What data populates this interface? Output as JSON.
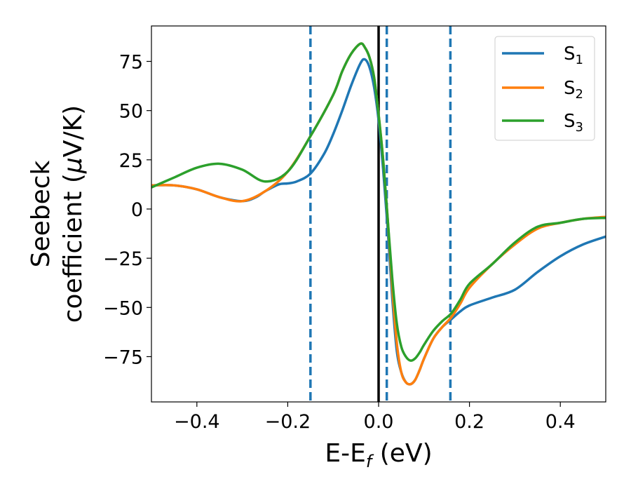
{
  "chart_data": {
    "type": "line",
    "xlabel": {
      "main": "E-E",
      "sub": "f",
      "unit": " (eV)"
    },
    "ylabel": {
      "line1": "Seebeck",
      "line2_prefix": "coefficient  (",
      "mu": "μ",
      "line2_suffix": "V/K)"
    },
    "xlim": [
      -0.5,
      0.5
    ],
    "ylim": [
      -98,
      93
    ],
    "xticks": [
      -0.4,
      -0.2,
      0.0,
      0.2,
      0.4
    ],
    "xtick_labels": [
      "−0.4",
      "−0.2",
      "0.0",
      "0.2",
      "0.4"
    ],
    "yticks": [
      75,
      50,
      25,
      0,
      -25,
      -50,
      -75
    ],
    "ytick_labels": [
      "75",
      "50",
      "25",
      "0",
      "−25",
      "−50",
      "−75"
    ],
    "grid": false,
    "legend_position": "top-right",
    "colors": {
      "S1": "#1f77b4",
      "S2": "#ff7f0e",
      "S3": "#2ca02c",
      "fermi_line": "#000000",
      "dashed": "#1f77b4"
    },
    "vertical_lines": {
      "solid": [
        0.0
      ],
      "dashed": [
        -0.15,
        0.018,
        0.158
      ]
    },
    "series": [
      {
        "name": "S1",
        "label_main": "S",
        "label_sub": "1",
        "color": "#1f77b4",
        "x": [
          -0.5,
          -0.45,
          -0.4,
          -0.35,
          -0.3,
          -0.27,
          -0.25,
          -0.22,
          -0.2,
          -0.18,
          -0.15,
          -0.12,
          -0.1,
          -0.08,
          -0.06,
          -0.04,
          -0.03,
          -0.02,
          -0.01,
          0,
          0.01,
          0.02,
          0.03,
          0.04,
          0.05,
          0.06,
          0.07,
          0.08,
          0.09,
          0.1,
          0.12,
          0.14,
          0.16,
          0.18,
          0.2,
          0.25,
          0.3,
          0.35,
          0.4,
          0.45,
          0.5
        ],
        "y": [
          12,
          12,
          10,
          6,
          4,
          6,
          9,
          12.5,
          13,
          14,
          18,
          28,
          38,
          50,
          63,
          74,
          76,
          72,
          62,
          45,
          20,
          -10,
          -45,
          -72,
          -83,
          -88,
          -89,
          -87,
          -82,
          -76,
          -66,
          -60,
          -56,
          -52,
          -49,
          -45,
          -41,
          -32,
          -24,
          -18,
          -14
        ]
      },
      {
        "name": "S2",
        "label_main": "S",
        "label_sub": "2",
        "color": "#ff7f0e",
        "x": [
          -0.5,
          -0.45,
          -0.4,
          -0.35,
          -0.3,
          -0.25,
          -0.2,
          -0.15,
          -0.1,
          -0.08,
          -0.06,
          -0.04,
          -0.03,
          -0.02,
          -0.01,
          0,
          0.01,
          0.02,
          0.03,
          0.04,
          0.05,
          0.06,
          0.07,
          0.08,
          0.09,
          0.1,
          0.12,
          0.14,
          0.16,
          0.18,
          0.2,
          0.25,
          0.3,
          0.35,
          0.4,
          0.45,
          0.5
        ],
        "y": [
          12,
          12,
          10,
          6,
          4,
          9,
          19,
          37,
          58,
          70,
          79,
          84,
          82,
          77,
          67,
          48,
          25,
          -5,
          -40,
          -68,
          -83,
          -88,
          -89,
          -87,
          -82,
          -76,
          -66,
          -60,
          -55,
          -48,
          -40,
          -28,
          -18,
          -10,
          -7,
          -5,
          -4
        ]
      },
      {
        "name": "S3",
        "label_main": "S",
        "label_sub": "3",
        "color": "#2ca02c",
        "x": [
          -0.5,
          -0.45,
          -0.4,
          -0.35,
          -0.3,
          -0.25,
          -0.2,
          -0.15,
          -0.1,
          -0.08,
          -0.06,
          -0.04,
          -0.03,
          -0.02,
          -0.01,
          0,
          0.01,
          0.02,
          0.03,
          0.04,
          0.05,
          0.06,
          0.07,
          0.08,
          0.09,
          0.1,
          0.12,
          0.14,
          0.16,
          0.18,
          0.2,
          0.25,
          0.3,
          0.35,
          0.4,
          0.45,
          0.5
        ],
        "y": [
          11,
          16,
          21,
          23,
          20,
          14,
          19,
          37,
          58,
          70,
          79,
          84,
          82,
          77,
          67,
          48,
          25,
          -5,
          -35,
          -58,
          -70,
          -75,
          -77,
          -76,
          -73,
          -69,
          -62,
          -57,
          -53,
          -46,
          -38,
          -28,
          -17,
          -9,
          -7,
          -5,
          -4.5
        ]
      }
    ]
  }
}
